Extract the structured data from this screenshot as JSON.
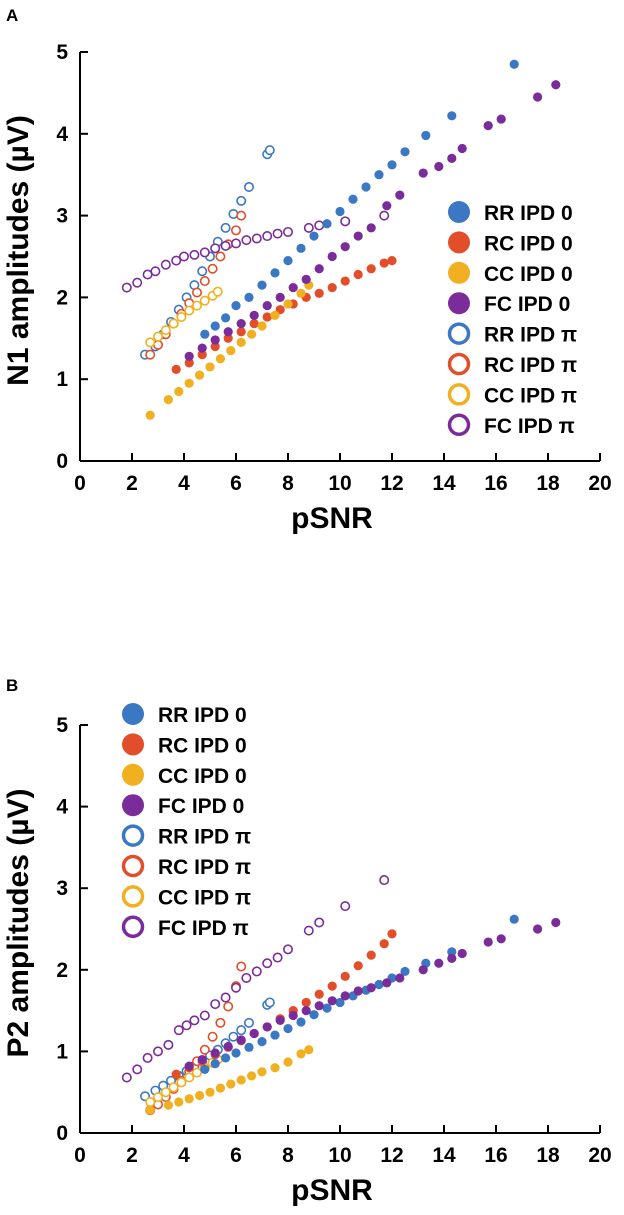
{
  "panels": {
    "a": {
      "letter": "A"
    },
    "b": {
      "letter": "B"
    }
  },
  "colors": {
    "RR": "#3a78c3",
    "RC": "#e34e2a",
    "CC": "#f0b020",
    "FC": "#7a2d9a"
  },
  "chart_data": [
    {
      "type": "scatter",
      "panel": "A",
      "title": "",
      "xlabel": "pSNR",
      "ylabel": "N1 amplitudes  (µV)",
      "xlim": [
        0,
        20
      ],
      "ylim": [
        0,
        5
      ],
      "xticks": [
        "0",
        "2",
        "4",
        "6",
        "8",
        "10",
        "12",
        "14",
        "16",
        "18",
        "20"
      ],
      "yticks": [
        "0",
        "1",
        "2",
        "3",
        "4",
        "5"
      ],
      "grid": false,
      "legend_position": "right",
      "series": [
        {
          "name": "RR IPD 0",
          "group": "RR",
          "filled": true,
          "x": [
            4.8,
            5.2,
            5.6,
            6.0,
            6.5,
            7.0,
            7.5,
            8.0,
            8.5,
            9.0,
            9.5,
            10.0,
            10.5,
            11.0,
            11.5,
            12.0,
            12.5,
            13.3,
            14.3,
            16.7
          ],
          "y": [
            1.55,
            1.65,
            1.75,
            1.9,
            2.0,
            2.15,
            2.3,
            2.45,
            2.6,
            2.75,
            2.9,
            3.05,
            3.2,
            3.35,
            3.5,
            3.62,
            3.78,
            3.98,
            4.22,
            4.85
          ]
        },
        {
          "name": "RC IPD 0",
          "group": "RC",
          "filled": true,
          "x": [
            3.7,
            4.2,
            4.7,
            5.2,
            5.7,
            6.2,
            6.7,
            7.2,
            7.7,
            8.2,
            8.7,
            9.2,
            9.7,
            10.2,
            10.7,
            11.2,
            11.7,
            12.0
          ],
          "y": [
            1.12,
            1.2,
            1.3,
            1.4,
            1.5,
            1.58,
            1.68,
            1.76,
            1.85,
            1.92,
            2.0,
            2.05,
            2.12,
            2.2,
            2.28,
            2.35,
            2.42,
            2.45
          ]
        },
        {
          "name": "CC IPD 0",
          "group": "CC",
          "filled": true,
          "x": [
            2.7,
            3.4,
            3.8,
            4.2,
            4.6,
            5.0,
            5.4,
            5.8,
            6.2,
            6.6,
            7.0,
            7.5,
            8.0,
            8.5,
            8.8
          ],
          "y": [
            0.56,
            0.75,
            0.85,
            0.95,
            1.05,
            1.15,
            1.25,
            1.35,
            1.45,
            1.55,
            1.65,
            1.78,
            1.92,
            2.05,
            2.15
          ]
        },
        {
          "name": "FC IPD 0",
          "group": "FC",
          "filled": true,
          "x": [
            4.2,
            4.7,
            5.2,
            5.7,
            6.2,
            6.7,
            7.2,
            7.7,
            8.2,
            8.7,
            9.2,
            9.7,
            10.2,
            10.7,
            11.2,
            11.8,
            12.3,
            13.2,
            13.8,
            14.3,
            14.7,
            15.7,
            16.2,
            17.6,
            18.3
          ],
          "y": [
            1.28,
            1.38,
            1.48,
            1.58,
            1.68,
            1.78,
            1.9,
            2.0,
            2.12,
            2.22,
            2.35,
            2.5,
            2.62,
            2.75,
            2.85,
            3.12,
            3.25,
            3.52,
            3.6,
            3.7,
            3.82,
            4.1,
            4.18,
            4.45,
            4.6
          ]
        },
        {
          "name": "RR IPD π",
          "group": "RR",
          "filled": false,
          "x": [
            2.5,
            2.9,
            3.2,
            3.5,
            3.8,
            4.1,
            4.4,
            4.7,
            5.0,
            5.3,
            5.6,
            5.9,
            6.2,
            6.5,
            7.2,
            7.3
          ],
          "y": [
            1.3,
            1.4,
            1.55,
            1.7,
            1.85,
            2.0,
            2.15,
            2.32,
            2.5,
            2.68,
            2.85,
            3.02,
            3.18,
            3.35,
            3.75,
            3.8
          ]
        },
        {
          "name": "RC IPD π",
          "group": "RC",
          "filled": false,
          "x": [
            2.7,
            3.0,
            3.3,
            3.6,
            3.9,
            4.2,
            4.5,
            4.8,
            5.1,
            5.4,
            5.7,
            6.0,
            6.2
          ],
          "y": [
            1.3,
            1.42,
            1.55,
            1.68,
            1.8,
            1.93,
            2.06,
            2.2,
            2.35,
            2.5,
            2.65,
            2.82,
            3.0
          ]
        },
        {
          "name": "CC IPD π",
          "group": "CC",
          "filled": false,
          "x": [
            2.7,
            3.0,
            3.3,
            3.6,
            3.9,
            4.2,
            4.5,
            4.8,
            5.1,
            5.3
          ],
          "y": [
            1.45,
            1.52,
            1.6,
            1.68,
            1.76,
            1.84,
            1.9,
            1.96,
            2.02,
            2.07
          ]
        },
        {
          "name": "FC IPD π",
          "group": "FC",
          "filled": false,
          "x": [
            1.8,
            2.2,
            2.6,
            2.9,
            3.3,
            3.7,
            4.0,
            4.4,
            4.8,
            5.2,
            5.6,
            6.0,
            6.4,
            6.8,
            7.2,
            7.6,
            8.0,
            8.8,
            9.2,
            10.2,
            11.7
          ],
          "y": [
            2.12,
            2.18,
            2.28,
            2.32,
            2.4,
            2.45,
            2.5,
            2.52,
            2.55,
            2.6,
            2.63,
            2.66,
            2.7,
            2.72,
            2.75,
            2.78,
            2.8,
            2.85,
            2.88,
            2.93,
            3.0
          ]
        }
      ]
    },
    {
      "type": "scatter",
      "panel": "B",
      "title": "",
      "xlabel": "pSNR",
      "ylabel": "P2 amplitudes  (µV)",
      "xlim": [
        0,
        20
      ],
      "ylim": [
        0,
        5
      ],
      "xticks": [
        "0",
        "2",
        "4",
        "6",
        "8",
        "10",
        "12",
        "14",
        "16",
        "18",
        "20"
      ],
      "yticks": [
        "0",
        "1",
        "2",
        "3",
        "4",
        "5"
      ],
      "grid": false,
      "legend_position": "top-left",
      "series": [
        {
          "name": "RR IPD 0",
          "group": "RR",
          "filled": true,
          "x": [
            4.8,
            5.2,
            5.6,
            6.0,
            6.5,
            7.0,
            7.5,
            8.0,
            8.5,
            9.0,
            9.5,
            10.0,
            10.5,
            11.0,
            11.5,
            12.0,
            12.5,
            13.3,
            14.3,
            16.7
          ],
          "y": [
            0.78,
            0.85,
            0.92,
            0.98,
            1.05,
            1.12,
            1.2,
            1.28,
            1.36,
            1.45,
            1.53,
            1.6,
            1.68,
            1.75,
            1.82,
            1.9,
            1.98,
            2.08,
            2.22,
            2.62
          ]
        },
        {
          "name": "RC IPD 0",
          "group": "RC",
          "filled": true,
          "x": [
            3.7,
            4.2,
            4.7,
            5.2,
            5.7,
            6.2,
            6.7,
            7.2,
            7.7,
            8.2,
            8.7,
            9.2,
            9.7,
            10.2,
            10.7,
            11.2,
            11.7,
            12.0
          ],
          "y": [
            0.72,
            0.8,
            0.88,
            0.96,
            1.05,
            1.13,
            1.22,
            1.3,
            1.4,
            1.5,
            1.6,
            1.7,
            1.8,
            1.92,
            2.05,
            2.18,
            2.32,
            2.44
          ]
        },
        {
          "name": "CC IPD 0",
          "group": "CC",
          "filled": true,
          "x": [
            2.7,
            3.4,
            3.8,
            4.2,
            4.6,
            5.0,
            5.4,
            5.8,
            6.2,
            6.6,
            7.0,
            7.5,
            8.0,
            8.5,
            8.8
          ],
          "y": [
            0.28,
            0.34,
            0.38,
            0.42,
            0.46,
            0.5,
            0.55,
            0.6,
            0.65,
            0.7,
            0.75,
            0.8,
            0.87,
            0.97,
            1.02
          ]
        },
        {
          "name": "FC IPD 0",
          "group": "FC",
          "filled": true,
          "x": [
            4.2,
            4.7,
            5.2,
            5.7,
            6.2,
            6.7,
            7.2,
            7.7,
            8.2,
            8.7,
            9.2,
            9.7,
            10.2,
            10.7,
            11.2,
            11.8,
            12.3,
            13.2,
            13.8,
            14.3,
            14.7,
            15.7,
            16.2,
            17.6,
            18.3
          ],
          "y": [
            0.82,
            0.9,
            0.98,
            1.06,
            1.14,
            1.22,
            1.3,
            1.38,
            1.44,
            1.5,
            1.56,
            1.62,
            1.68,
            1.74,
            1.78,
            1.84,
            1.9,
            2.0,
            2.08,
            2.14,
            2.2,
            2.34,
            2.38,
            2.5,
            2.58
          ]
        },
        {
          "name": "RR IPD π",
          "group": "RR",
          "filled": false,
          "x": [
            2.5,
            2.9,
            3.2,
            3.5,
            3.8,
            4.1,
            4.4,
            4.7,
            5.0,
            5.3,
            5.6,
            5.9,
            6.2,
            6.5,
            7.2,
            7.3
          ],
          "y": [
            0.45,
            0.52,
            0.58,
            0.64,
            0.7,
            0.76,
            0.82,
            0.88,
            0.95,
            1.02,
            1.1,
            1.18,
            1.26,
            1.35,
            1.57,
            1.6
          ]
        },
        {
          "name": "RC IPD π",
          "group": "RC",
          "filled": false,
          "x": [
            2.7,
            3.0,
            3.3,
            3.6,
            3.9,
            4.2,
            4.5,
            4.8,
            5.1,
            5.4,
            5.7,
            6.0,
            6.2
          ],
          "y": [
            0.28,
            0.35,
            0.44,
            0.54,
            0.64,
            0.75,
            0.88,
            1.02,
            1.18,
            1.35,
            1.55,
            1.8,
            2.04
          ]
        },
        {
          "name": "CC IPD π",
          "group": "CC",
          "filled": false,
          "x": [
            2.7,
            3.0,
            3.3,
            3.6,
            3.9,
            4.2,
            4.5,
            4.8,
            5.1,
            5.3
          ],
          "y": [
            0.38,
            0.44,
            0.5,
            0.56,
            0.62,
            0.68,
            0.74,
            0.8,
            0.86,
            0.9
          ]
        },
        {
          "name": "FC IPD π",
          "group": "FC",
          "filled": false,
          "x": [
            1.8,
            2.2,
            2.6,
            3.0,
            3.4,
            3.8,
            4.1,
            4.4,
            4.8,
            5.2,
            5.6,
            6.0,
            6.4,
            6.8,
            7.2,
            7.6,
            8.0,
            8.8,
            9.2,
            10.2,
            11.7
          ],
          "y": [
            0.68,
            0.78,
            0.92,
            1.0,
            1.08,
            1.26,
            1.32,
            1.38,
            1.44,
            1.58,
            1.66,
            1.78,
            1.9,
            1.98,
            2.08,
            2.15,
            2.25,
            2.48,
            2.58,
            2.78,
            3.1
          ]
        }
      ]
    }
  ]
}
